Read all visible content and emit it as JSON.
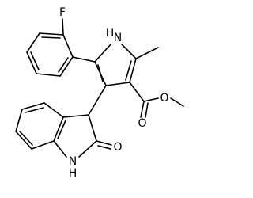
{
  "atoms": {
    "fluorine": "F",
    "pyrrole_n": "N",
    "pyrrole_h": "H",
    "ester_o": "O",
    "carbonyl_o": "O",
    "lactam_o": "O",
    "lactam_n": "N",
    "lactam_h": "H"
  }
}
